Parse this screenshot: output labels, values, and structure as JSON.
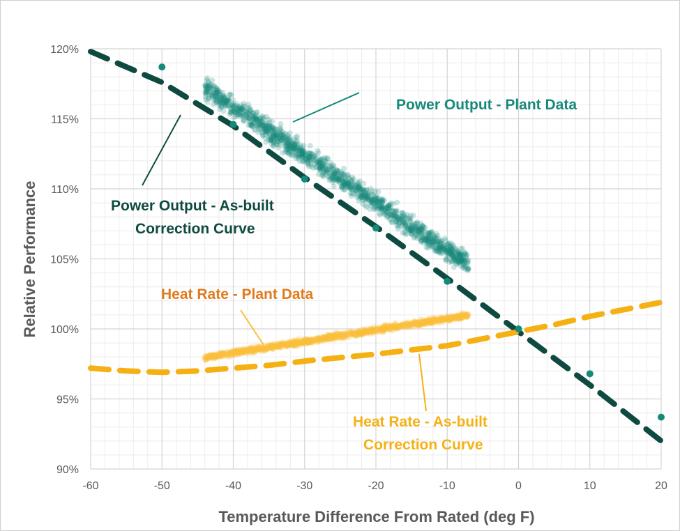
{
  "chart_data": {
    "type": "scatter",
    "xlabel": "Temperature Difference From Rated (deg F)",
    "ylabel": "Relative Performance",
    "xlim": [
      -60,
      20
    ],
    "ylim": [
      90,
      120
    ],
    "x_ticks": [
      -60,
      -50,
      -40,
      -30,
      -20,
      -10,
      0,
      10,
      20
    ],
    "x_tick_labels": [
      "-60",
      "-50",
      "-40",
      "-30",
      "-20",
      "-10",
      "0",
      "10",
      "20"
    ],
    "y_ticks": [
      90,
      95,
      100,
      105,
      110,
      115,
      120
    ],
    "y_tick_labels": [
      "90%",
      "95%",
      "100%",
      "105%",
      "110%",
      "115%",
      "120%"
    ],
    "grid": true,
    "minor_grid": true,
    "series": [
      {
        "name": "Power Output - As-built Correction Curve",
        "kind": "dashed-line",
        "color": "#0e4a40",
        "x": [
          -60,
          -50,
          -40,
          -30,
          -20,
          -10,
          0,
          10,
          20
        ],
        "y": [
          119.8,
          117.6,
          114.5,
          110.8,
          107.3,
          103.6,
          99.8,
          96.0,
          92.0
        ]
      },
      {
        "name": "Power Output - As-built Correction Curve",
        "kind": "markers",
        "color": "#138a7a",
        "x": [
          -50,
          -40,
          -30,
          -20,
          -10,
          0,
          10,
          20
        ],
        "y": [
          118.7,
          114.6,
          110.7,
          107.2,
          103.4,
          100.0,
          96.8,
          93.7
        ]
      },
      {
        "name": "Heat Rate - As-built Correction Curve",
        "kind": "dashed-line",
        "color": "#f5b114",
        "x": [
          -60,
          -55,
          -50,
          -45,
          -40,
          -35,
          -30,
          -25,
          -20,
          -15,
          -10,
          -5,
          0,
          5,
          10,
          15,
          20
        ],
        "y": [
          97.2,
          97.0,
          96.9,
          97.0,
          97.2,
          97.4,
          97.7,
          97.95,
          98.2,
          98.5,
          98.8,
          99.3,
          99.8,
          100.3,
          100.9,
          101.4,
          101.9
        ]
      },
      {
        "name": "Power Output - Plant Data",
        "kind": "scatter-cloud",
        "color": "#16897a",
        "x_range": [
          -44,
          -7
        ],
        "trend_y_at_x_start": 117.2,
        "trend_slope_per_deg": -0.34,
        "spread": 1.6
      },
      {
        "name": "Heat Rate - Plant Data",
        "kind": "scatter-cloud",
        "color": "#fbbf3a",
        "x_range": [
          -44,
          -7
        ],
        "trend_y_at_x_start": 97.95,
        "trend_slope_per_deg": 0.082,
        "spread": 0.45
      }
    ],
    "annotations": [
      {
        "text": "Power Output - Plant Data",
        "color": "#16897a"
      },
      {
        "text": "Power Output - As-built",
        "color": "#0e4a40"
      },
      {
        "text": "Correction Curve",
        "color": "#0e4a40"
      },
      {
        "text": "Heat Rate - Plant Data",
        "color": "#e07b1c"
      },
      {
        "text": "Heat Rate - As-built",
        "color": "#f5b114"
      },
      {
        "text": "Correction Curve",
        "color": "#f5b114"
      }
    ]
  }
}
